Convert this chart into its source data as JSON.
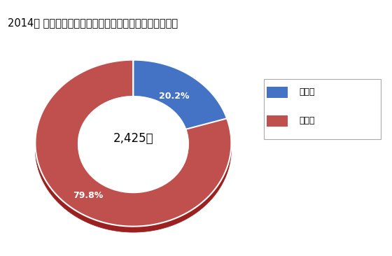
{
  "title": "2014年 商業の従業者数にしめる卩売業と小売業のシェア",
  "slices": [
    20.2,
    79.8
  ],
  "colors": [
    "#4472C4",
    "#C0504D"
  ],
  "center_text": "2,425人",
  "pct_labels": [
    "20.2%",
    "79.8%"
  ],
  "legend_labels": [
    "小売業",
    "卩売業"
  ],
  "background_color": "#FFFFFF",
  "title_fontsize": 10.5
}
